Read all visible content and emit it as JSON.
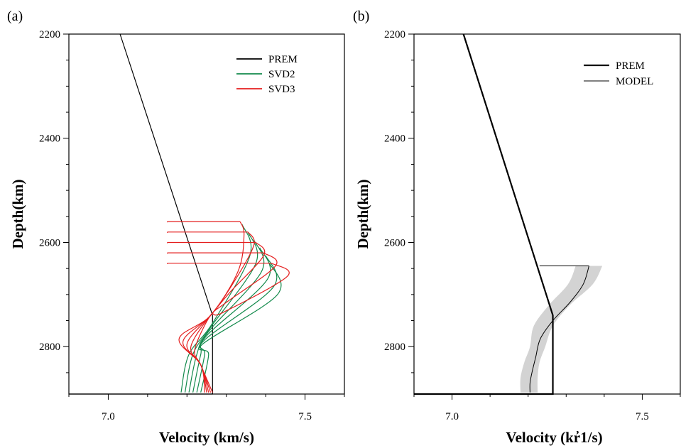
{
  "chart_data": [
    {
      "type": "line",
      "panel_label": "(a)",
      "xlabel": "Velocity (km/s)",
      "ylabel": "Depth(km)",
      "xlim": [
        6.9,
        7.6
      ],
      "ylim": [
        2200,
        2891
      ],
      "y_inverted": true,
      "x_ticks": [
        7.0,
        7.5
      ],
      "y_ticks": [
        2200,
        2400,
        2600,
        2800
      ],
      "grid": false,
      "legend_position": "top-right",
      "legend": [
        {
          "label": "PREM",
          "color": "#000000"
        },
        {
          "label": "SVD2",
          "color": "#138a4c"
        },
        {
          "label": "SVD3",
          "color": "#e41e1e"
        }
      ],
      "series": [
        {
          "name": "PREM",
          "color": "#000000",
          "width": 1.2,
          "points": [
            [
              7.03,
              2200
            ],
            [
              7.265,
              2740
            ],
            [
              7.265,
              2891
            ],
            [
              6.9,
              2891
            ]
          ]
        },
        {
          "name": "SVD2",
          "color": "#138a4c",
          "width": 1.2,
          "family": "svd2",
          "top_depths": [
            2565,
            2580,
            2595,
            2610,
            2625,
            2640
          ],
          "peak_velocities": [
            7.36,
            7.375,
            7.39,
            7.405,
            7.42,
            7.43
          ],
          "bottom_velocities": [
            7.185,
            7.195,
            7.205,
            7.215,
            7.225,
            7.235
          ],
          "bottom_depth": 2888
        },
        {
          "name": "SVD3",
          "color": "#e41e1e",
          "width": 1.2,
          "family": "svd3",
          "top_depths": [
            2560,
            2580,
            2600,
            2620,
            2640
          ],
          "top_velocities": [
            7.335,
            7.355,
            7.375,
            7.395,
            7.415
          ],
          "peak_velocities": [
            7.345,
            7.37,
            7.395,
            7.425,
            7.455
          ],
          "trough_velocities": [
            7.18,
            7.19,
            7.2,
            7.21,
            7.22
          ],
          "bottom_velocities": [
            7.245,
            7.25,
            7.255,
            7.26,
            7.265
          ],
          "bottom_depth": 2888
        }
      ]
    },
    {
      "type": "line",
      "panel_label": "(b)",
      "xlabel": "Velocity (kr̓1/s)",
      "ylabel": "Depth(km)",
      "xlim": [
        6.9,
        7.6
      ],
      "ylim": [
        2200,
        2891
      ],
      "y_inverted": true,
      "x_ticks": [
        7.0,
        7.5
      ],
      "y_ticks": [
        2200,
        2400,
        2600,
        2800
      ],
      "grid": false,
      "legend_position": "top-right",
      "legend": [
        {
          "label": "PREM",
          "color": "#000000",
          "width": 2.2
        },
        {
          "label": "MODEL",
          "color": "#000000",
          "width": 1.0
        }
      ],
      "uncertainty_band": {
        "color": "#d3d3d3",
        "depths": [
          2645,
          2680,
          2720,
          2760,
          2800,
          2830,
          2860,
          2888
        ],
        "v_left": [
          7.325,
          7.305,
          7.255,
          7.215,
          7.205,
          7.19,
          7.18,
          7.18
        ],
        "v_right": [
          7.395,
          7.37,
          7.31,
          7.265,
          7.245,
          7.23,
          7.225,
          7.225
        ]
      },
      "series": [
        {
          "name": "PREM",
          "color": "#000000",
          "width": 2.2,
          "points": [
            [
              7.03,
              2200
            ],
            [
              7.265,
              2740
            ],
            [
              7.265,
              2891
            ],
            [
              6.9,
              2891
            ]
          ]
        },
        {
          "name": "MODEL",
          "color": "#000000",
          "width": 1.0,
          "points": [
            [
              7.23,
              2645
            ],
            [
              7.36,
              2645
            ],
            [
              7.345,
              2680
            ],
            [
              7.31,
              2715
            ],
            [
              7.265,
              2750
            ],
            [
              7.232,
              2785
            ],
            [
              7.22,
              2820
            ],
            [
              7.21,
              2850
            ],
            [
              7.205,
              2870
            ],
            [
              7.205,
              2888
            ]
          ]
        }
      ]
    }
  ]
}
